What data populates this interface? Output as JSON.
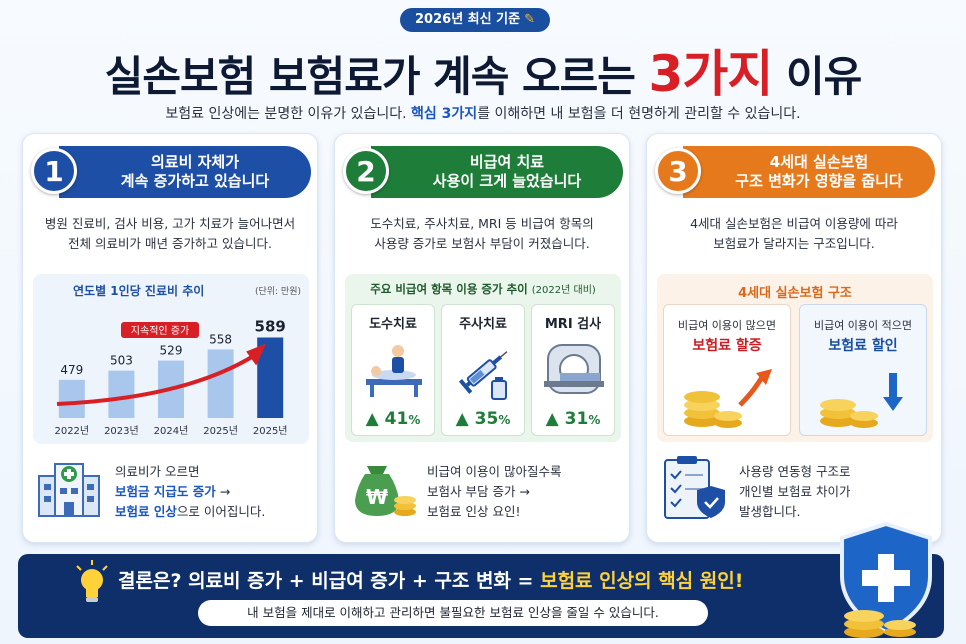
{
  "header": {
    "badge": "2026년 최신 기준",
    "title_main": "실손보험 보험료가 계속 오르는 ",
    "title_highlight": "3가지",
    "title_end": " 이유",
    "subtitle_pre": "보험료 인상에는 분명한 이유가 있습니다. ",
    "subtitle_highlight": "핵심 3가지",
    "subtitle_post": "를 이해하면 내 보험을 더 현명하게 관리할 수 있습니다."
  },
  "card1": {
    "number": "1",
    "heading_line1": "의료비 자체가",
    "heading_line2": "계속 증가하고 있습니다",
    "desc_line1": "병원 진료비, 검사 비용, 고가 치료가 늘어나면서",
    "desc_line2": "전체 의료비가 매년 증가하고 있습니다.",
    "note_line1": "의료비가 오르면",
    "note_line2_hl": "보험금 지급도 증가",
    "note_line2_post": " →",
    "note_line3_hl": "보험료 인상",
    "note_line3_post": "으로 이어집니다."
  },
  "chart_data": {
    "type": "bar",
    "title": "연도별 1인당 진료비 추이",
    "unit": "(단위: 만원)",
    "categories": [
      "2022년",
      "2023년",
      "2024년",
      "2025년",
      "2025년"
    ],
    "values": [
      479,
      503,
      529,
      558,
      589
    ],
    "annotation": "지속적인 증가",
    "ylim": [
      0,
      650
    ],
    "colors": {
      "bar": "#a9c6ec",
      "bar_last": "#1d4fa6",
      "arrow": "#d91f26"
    }
  },
  "card2": {
    "number": "2",
    "heading_line1": "비급여 치료",
    "heading_line2": "사용이 크게 늘었습니다",
    "desc_line1": "도수치료, 주사치료, MRI 등 비급여 항목의",
    "desc_line2": "사용량 증가로 보험사 부담이 커졌습니다.",
    "box_title": "주요 비급여 항목 이용 증가 추이",
    "box_title_small": "(2022년 대비)",
    "items": [
      {
        "name": "도수치료",
        "pct": "41",
        "icon": "massage-therapy-icon"
      },
      {
        "name": "주사치료",
        "pct": "35",
        "icon": "syringe-icon"
      },
      {
        "name": "MRI 검사",
        "pct": "31",
        "icon": "mri-icon"
      }
    ],
    "up": "▲",
    "pct_sign": "%",
    "note_line1": "비급여 이용이 많아질수록",
    "note_line2": "보험사 부담 증가 →",
    "note_line3": "보험료 인상 요인!"
  },
  "card3": {
    "number": "3",
    "heading_line1": "4세대 실손보험",
    "heading_line2": "구조 변화가 영향을 줍니다",
    "desc_line1": "4세대 실손보험은 비급여 이용량에 따라",
    "desc_line2": "보험료가 달라지는 구조입니다.",
    "box_title": "4세대 실손보험 구조",
    "left_label": "비급여 이용이 많으면",
    "left_value": "보험료 할증",
    "right_label": "비급여 이용이 적으면",
    "right_value": "보험료 할인",
    "note_line1": "사용량 연동형 구조로",
    "note_line2": "개인별 보험료 차이가",
    "note_line3": "발생합니다."
  },
  "banner": {
    "text_pre": "결론은? 의료비 증가 + 비급여 증가 + 구조 변화 = ",
    "text_hl": "보험료 인상의 핵심 원인!",
    "sub": "내 보험을 제대로 이해하고 관리하면 불필요한 보험료 인상을 줄일 수 있습니다."
  },
  "colors": {
    "blue": "#1d4fa6",
    "green": "#1f7d3a",
    "orange": "#e6791c",
    "red": "#d91f26",
    "navy": "#0f2f6b"
  }
}
